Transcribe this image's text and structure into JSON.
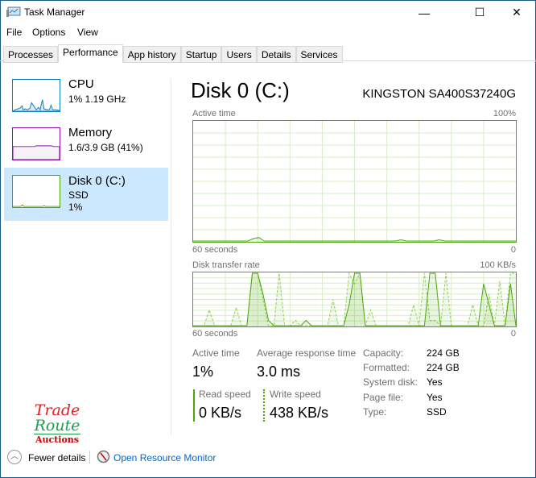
{
  "window": {
    "title": "Task Manager",
    "minimize": "—",
    "maximize": "☐",
    "close": "✕"
  },
  "menu": [
    "File",
    "Options",
    "View"
  ],
  "tabs": [
    {
      "label": "Processes"
    },
    {
      "label": "Performance",
      "active": true
    },
    {
      "label": "App history"
    },
    {
      "label": "Startup"
    },
    {
      "label": "Users"
    },
    {
      "label": "Details"
    },
    {
      "label": "Services"
    }
  ],
  "sidebar": [
    {
      "name": "CPU",
      "line1": "1% 1.19 GHz",
      "color": "#117dbb",
      "fill": "#f1f6fa"
    },
    {
      "name": "Memory",
      "line1": "1.6/3.9 GB (41%)",
      "color": "#8b12ae",
      "fill": "#f4f2f4"
    },
    {
      "name": "Disk 0 (C:)",
      "line1": "SSD",
      "line2": "1%",
      "color": "#4da60c",
      "fill": "#eff7e9",
      "selected": true
    }
  ],
  "main": {
    "title": "Disk 0 (C:)",
    "model": "KINGSTON SA400S37240G",
    "active_graph": {
      "label": "Active time",
      "max": "100%",
      "time": "60 seconds",
      "min": "0",
      "values": [
        0,
        0,
        0,
        0,
        0,
        0,
        0,
        0,
        0,
        0,
        0,
        2,
        3,
        0,
        0,
        0,
        0,
        0,
        0,
        0,
        0,
        0,
        0,
        0,
        0,
        0,
        0,
        0,
        0,
        0,
        0,
        0,
        0,
        0,
        0,
        0,
        0,
        0,
        1,
        0,
        0,
        0,
        0,
        0,
        0,
        1,
        0,
        0,
        0,
        0,
        0,
        0,
        0,
        0,
        0,
        0,
        0,
        0,
        0,
        0
      ]
    },
    "transfer_graph": {
      "label": "Disk transfer rate",
      "max": "100 KB/s",
      "time": "60 seconds",
      "min": "0",
      "read": [
        0,
        0,
        0,
        0,
        0,
        0,
        0,
        0,
        0,
        0,
        0,
        100,
        100,
        60,
        10,
        0,
        0,
        0,
        0,
        0,
        0,
        10,
        0,
        0,
        0,
        0,
        0,
        0,
        0,
        40,
        100,
        100,
        0,
        0,
        0,
        0,
        0,
        0,
        0,
        0,
        0,
        0,
        0,
        0,
        100,
        100,
        0,
        0,
        0,
        0,
        0,
        0,
        0,
        0,
        80,
        40,
        0,
        0,
        0,
        80,
        0
      ],
      "write": [
        0,
        0,
        0,
        30,
        0,
        0,
        0,
        0,
        35,
        0,
        0,
        100,
        100,
        50,
        0,
        0,
        100,
        0,
        0,
        10,
        0,
        0,
        0,
        0,
        0,
        0,
        50,
        0,
        0,
        100,
        80,
        100,
        0,
        30,
        0,
        0,
        0,
        0,
        0,
        0,
        0,
        40,
        0,
        100,
        10,
        10,
        0,
        100,
        0,
        0,
        0,
        0,
        40,
        0,
        0,
        60,
        0,
        85,
        0,
        100,
        100
      ]
    },
    "stats": {
      "active_time_label": "Active time",
      "active_time": "1%",
      "resp_label": "Average response time",
      "resp": "3.0 ms",
      "read_label": "Read speed",
      "read": "0 KB/s",
      "write_label": "Write speed",
      "write": "438 KB/s"
    },
    "info": [
      [
        "Capacity:",
        "224 GB"
      ],
      [
        "Formatted:",
        "224 GB"
      ],
      [
        "System disk:",
        "Yes"
      ],
      [
        "Page file:",
        "Yes"
      ],
      [
        "Type:",
        "SSD"
      ]
    ]
  },
  "footer": {
    "fewer": "Fewer details",
    "resmon": "Open Resource Monitor"
  },
  "logo": {
    "line1": "Trade",
    "line2": "Route",
    "line3": "Auctions"
  },
  "colors": {
    "disk": "#4da60c",
    "link": "#0066cc",
    "selected": "#cce8ff"
  }
}
